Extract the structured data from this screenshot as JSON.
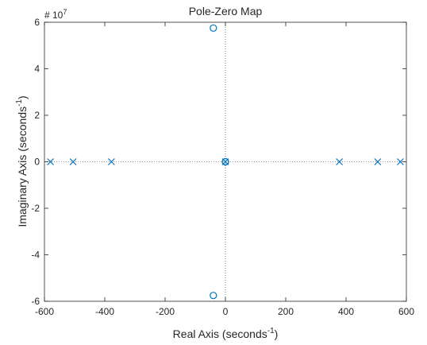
{
  "chart_data": {
    "type": "scatter",
    "title": "Pole-Zero Map",
    "xlabel": "Real Axis (seconds",
    "xlabel_sup": "-1",
    "xlabel_end": ")",
    "ylabel": "Imaginary Axis (seconds",
    "ylabel_sup": "-1",
    "ylabel_end": ")",
    "y_exponent_prefix": "# 10",
    "y_exponent_power": "7",
    "xlim": [
      -600,
      600
    ],
    "ylim": [
      -6,
      6
    ],
    "y_scale_factor": 10000000,
    "xticks": [
      -600,
      -400,
      -200,
      0,
      200,
      400,
      600
    ],
    "yticks": [
      -6,
      -4,
      -2,
      0,
      2,
      4,
      6
    ],
    "xtick_labels": [
      "-600",
      "-400",
      "-200",
      "0",
      "200",
      "400",
      "600"
    ],
    "ytick_labels": [
      "-6",
      "-4",
      "-2",
      "0",
      "2",
      "4",
      "6"
    ],
    "grid": false,
    "reference_lines": "dotted lines at real = 0 and imaginary = 0",
    "marker_color": "#0072BD",
    "series": [
      {
        "marker": "x",
        "points": [
          {
            "x": -580,
            "y": 0
          },
          {
            "x": -505,
            "y": 0
          },
          {
            "x": -378,
            "y": 0
          },
          {
            "x": 0,
            "y": 0
          },
          {
            "x": 378,
            "y": 0
          },
          {
            "x": 505,
            "y": 0
          },
          {
            "x": 580,
            "y": 0
          }
        ]
      },
      {
        "marker": "o",
        "points": [
          {
            "x": -40,
            "y": 5.75
          },
          {
            "x": -40,
            "y": -5.75
          },
          {
            "x": 0,
            "y": 0
          },
          {
            "x": 0,
            "y": 0
          }
        ]
      }
    ]
  }
}
